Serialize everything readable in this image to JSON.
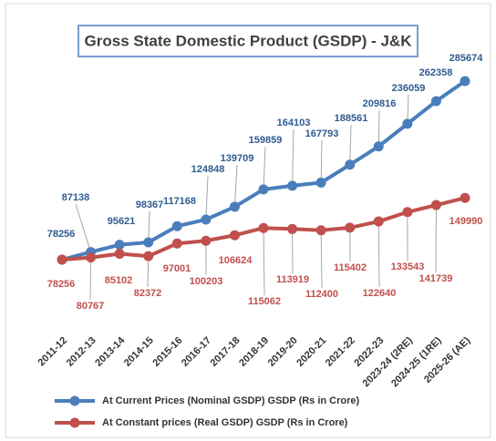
{
  "chart_data": {
    "type": "line",
    "title": "Gross State Domestic Product (GSDP) - J&K",
    "categories": [
      "2011-12",
      "2012-13",
      "2013-14",
      "2014-15",
      "2015-16",
      "2016-17",
      "2017-18",
      "2018-19",
      "2019-20",
      "2020-21",
      "2021-22",
      "2022-23",
      "2023-24 (2RE)",
      "2024-25 (1RE)",
      "2025-26 (AE)"
    ],
    "series": [
      {
        "name": "At Current Prices (Nominal GSDP) GSDP (Rs in Crore)",
        "color": "#4a7ebb",
        "values": [
          78256,
          87138,
          95621,
          98367,
          117168,
          124848,
          139709,
          159859,
          164103,
          167793,
          188561,
          209816,
          236059,
          262358,
          285674
        ]
      },
      {
        "name": "At Constant prices (Real GSDP) GSDP (Rs in Crore)",
        "color": "#c0504d",
        "values": [
          78256,
          80767,
          85102,
          82372,
          97001,
          100203,
          106624,
          115062,
          113919,
          112400,
          115402,
          122640,
          133543,
          141739,
          149990
        ]
      }
    ]
  }
}
